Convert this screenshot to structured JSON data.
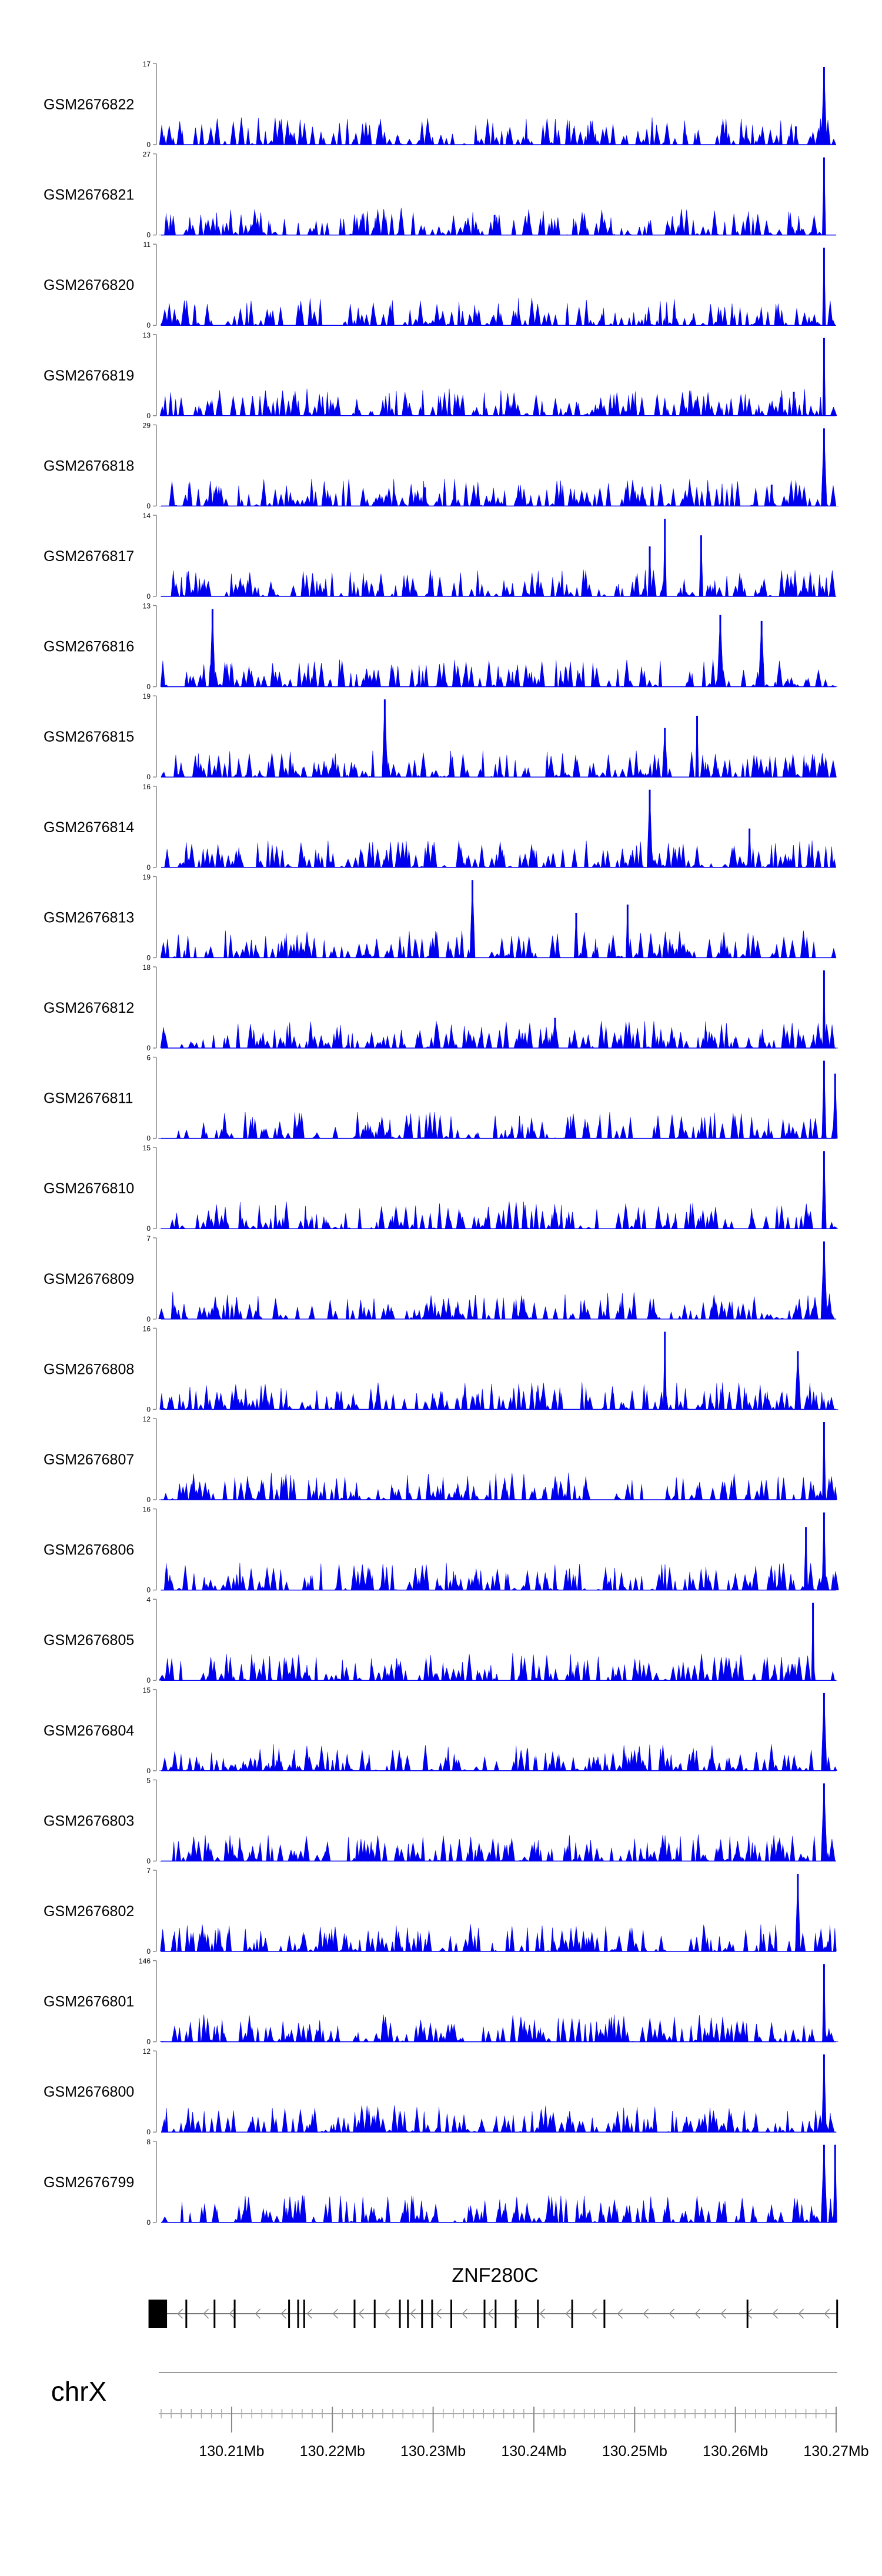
{
  "chart_data": {
    "type": "area",
    "chromosome": "chrX",
    "x_range_mb": [
      130.203,
      130.27
    ],
    "x_tick_labels": [
      "130.21Mb",
      "130.22Mb",
      "130.23Mb",
      "130.24Mb",
      "130.25Mb",
      "130.26Mb",
      "130.27Mb"
    ],
    "x_tick_values_mb": [
      130.21,
      130.22,
      130.23,
      130.24,
      130.25,
      130.26,
      130.27
    ],
    "series_color": "#0000ee",
    "tracks": [
      {
        "name": "GSM2676822",
        "ymin": "0",
        "ymax": "17",
        "peaks": [
          [
            130.266,
            4
          ],
          [
            130.2688,
            17
          ]
        ]
      },
      {
        "name": "GSM2676821",
        "ymin": "0",
        "ymax": "27",
        "peaks": [
          [
            130.2361,
            7
          ],
          [
            130.2688,
            27
          ]
        ]
      },
      {
        "name": "GSM2676820",
        "ymin": "0",
        "ymax": "11",
        "peaks": [
          [
            130.2688,
            11
          ]
        ]
      },
      {
        "name": "GSM2676819",
        "ymin": "0",
        "ymax": "13",
        "peaks": [
          [
            130.2658,
            4
          ],
          [
            130.2688,
            13
          ]
        ]
      },
      {
        "name": "GSM2676818",
        "ymin": "0",
        "ymax": "29",
        "peaks": [
          [
            130.2292,
            7
          ],
          [
            130.2636,
            8
          ],
          [
            130.2688,
            29
          ]
        ]
      },
      {
        "name": "GSM2676817",
        "ymin": "0",
        "ymax": "14",
        "peaks": [
          [
            130.2515,
            9
          ],
          [
            130.253,
            14
          ],
          [
            130.2566,
            11
          ]
        ]
      },
      {
        "name": "GSM2676816",
        "ymin": "0",
        "ymax": "13",
        "peaks": [
          [
            130.2081,
            13
          ],
          [
            130.2585,
            12
          ],
          [
            130.2626,
            11
          ]
        ]
      },
      {
        "name": "GSM2676815",
        "ymin": "0",
        "ymax": "19",
        "peaks": [
          [
            130.2252,
            19
          ],
          [
            130.253,
            12
          ],
          [
            130.2562,
            15
          ]
        ]
      },
      {
        "name": "GSM2676814",
        "ymin": "0",
        "ymax": "16",
        "peaks": [
          [
            130.2515,
            16
          ],
          [
            130.2614,
            8
          ]
        ]
      },
      {
        "name": "GSM2676813",
        "ymin": "0",
        "ymax": "19",
        "peaks": [
          [
            130.2339,
            19
          ],
          [
            130.2442,
            11
          ],
          [
            130.2493,
            13
          ]
        ]
      },
      {
        "name": "GSM2676812",
        "ymin": "0",
        "ymax": "18",
        "peaks": [
          [
            130.2421,
            7
          ],
          [
            130.2688,
            18
          ]
        ]
      },
      {
        "name": "GSM2676811",
        "ymin": "0",
        "ymax": "6",
        "peaks": [
          [
            130.2688,
            6
          ],
          [
            130.2699,
            5
          ]
        ]
      },
      {
        "name": "GSM2676810",
        "ymin": "0",
        "ymax": "15",
        "peaks": [
          [
            130.2688,
            15
          ]
        ]
      },
      {
        "name": "GSM2676809",
        "ymin": "0",
        "ymax": "7",
        "peaks": [
          [
            130.2688,
            7
          ]
        ]
      },
      {
        "name": "GSM2676808",
        "ymin": "0",
        "ymax": "16",
        "peaks": [
          [
            130.253,
            16
          ],
          [
            130.2662,
            12
          ]
        ]
      },
      {
        "name": "GSM2676807",
        "ymin": "0",
        "ymax": "12",
        "peaks": [
          [
            130.2688,
            12
          ]
        ]
      },
      {
        "name": "GSM2676806",
        "ymin": "0",
        "ymax": "16",
        "peaks": [
          [
            130.267,
            13
          ],
          [
            130.2688,
            16
          ]
        ]
      },
      {
        "name": "GSM2676805",
        "ymin": "0",
        "ymax": "4",
        "peaks": [
          [
            130.2677,
            4
          ]
        ]
      },
      {
        "name": "GSM2676804",
        "ymin": "0",
        "ymax": "15",
        "peaks": [
          [
            130.2688,
            15
          ]
        ]
      },
      {
        "name": "GSM2676803",
        "ymin": "0",
        "ymax": "5",
        "peaks": [
          [
            130.2688,
            5
          ]
        ]
      },
      {
        "name": "GSM2676802",
        "ymin": "0",
        "ymax": "7",
        "peaks": [
          [
            130.2662,
            7
          ]
        ]
      },
      {
        "name": "GSM2676801",
        "ymin": "0",
        "ymax": "146",
        "peaks": [
          [
            130.2688,
            146
          ]
        ]
      },
      {
        "name": "GSM2676800",
        "ymin": "0",
        "ymax": "12",
        "peaks": [
          [
            130.2688,
            12
          ]
        ]
      },
      {
        "name": "GSM2676799",
        "ymin": "0",
        "ymax": "8",
        "peaks": [
          [
            130.2688,
            8
          ],
          [
            130.2699,
            8
          ]
        ]
      }
    ],
    "gene": {
      "name": "ZNF280C",
      "strand": "-",
      "start_mb": 130.2035,
      "end_mb": 130.2701,
      "exons_mb": [
        130.2035,
        130.2055,
        130.2083,
        130.2103,
        130.2157,
        130.2166,
        130.2172,
        130.2222,
        130.2242,
        130.2267,
        130.2275,
        130.2289,
        130.2299,
        130.2318,
        130.2351,
        130.2362,
        130.2382,
        130.2404,
        130.2438,
        130.247,
        130.2612,
        130.2701
      ]
    }
  }
}
